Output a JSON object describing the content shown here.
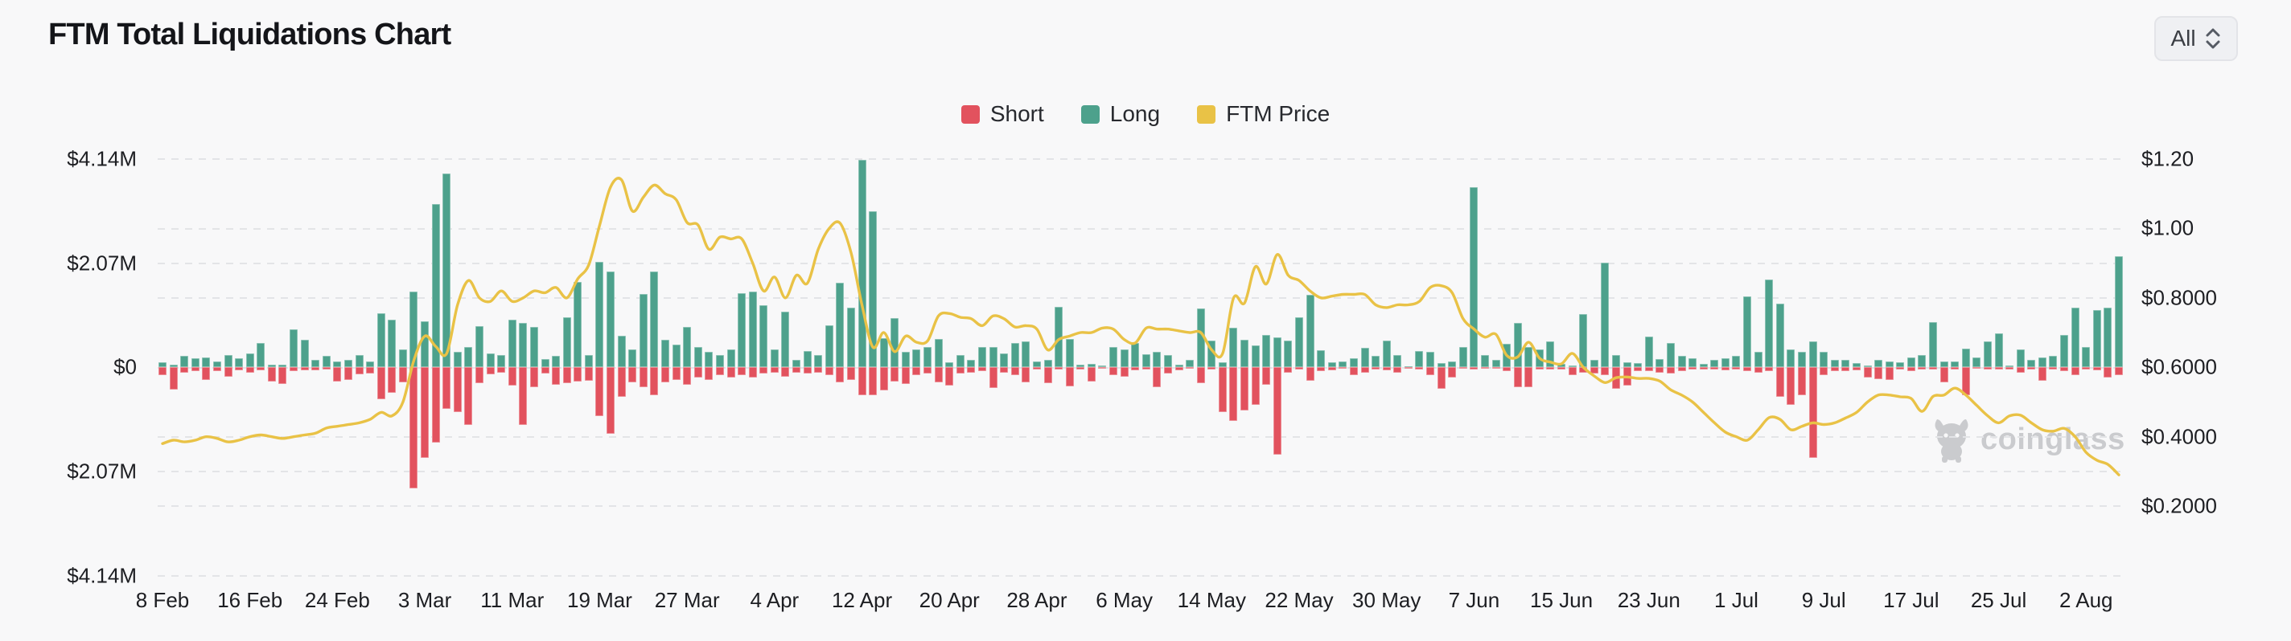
{
  "header": {
    "title": "FTM Total Liquidations Chart",
    "range_selector": {
      "value": "All"
    }
  },
  "legend": [
    {
      "label": "Short",
      "color": "#e2525e"
    },
    {
      "label": "Long",
      "color": "#4da18c"
    },
    {
      "label": "FTM Price",
      "color": "#e9c246"
    }
  ],
  "watermark": {
    "text": "coinglass"
  },
  "chart_data": {
    "type": "bar+line",
    "title": "FTM Total Liquidations Chart",
    "left_axis": {
      "labels": [
        "$4.14M",
        "$2.07M",
        "$0",
        "$2.07M",
        "$4.14M"
      ],
      "max_m": 4.14,
      "tick_step_m": 2.07,
      "unit": "USD millions"
    },
    "right_axis": {
      "labels": [
        "$1.20",
        "$1.00",
        "$0.8000",
        "$0.6000",
        "$0.4000",
        "$0.2000"
      ],
      "values": [
        1.2,
        1.0,
        0.8,
        0.6,
        0.4,
        0.2
      ],
      "min": 0,
      "max": 1.2,
      "unit": "USD"
    },
    "x_tick_labels": [
      "8 Feb",
      "16 Feb",
      "24 Feb",
      "3 Mar",
      "11 Mar",
      "19 Mar",
      "27 Mar",
      "4 Apr",
      "12 Apr",
      "20 Apr",
      "28 Apr",
      "6 May",
      "14 May",
      "22 May",
      "30 May",
      "7 Jun",
      "15 Jun",
      "23 Jun",
      "1 Jul",
      "9 Jul",
      "17 Jul",
      "25 Jul",
      "2 Aug"
    ],
    "x_tick_every": 8,
    "grid": "dashed-horizontal",
    "legend_position": "top-center",
    "dates": [
      "8 Feb",
      "9 Feb",
      "10 Feb",
      "11 Feb",
      "12 Feb",
      "13 Feb",
      "14 Feb",
      "15 Feb",
      "16 Feb",
      "17 Feb",
      "18 Feb",
      "19 Feb",
      "20 Feb",
      "21 Feb",
      "22 Feb",
      "23 Feb",
      "24 Feb",
      "25 Feb",
      "26 Feb",
      "27 Feb",
      "28 Feb",
      "29 Feb",
      "1 Mar",
      "2 Mar",
      "3 Mar",
      "4 Mar",
      "5 Mar",
      "6 Mar",
      "7 Mar",
      "8 Mar",
      "9 Mar",
      "10 Mar",
      "11 Mar",
      "12 Mar",
      "13 Mar",
      "14 Mar",
      "15 Mar",
      "16 Mar",
      "17 Mar",
      "18 Mar",
      "19 Mar",
      "20 Mar",
      "21 Mar",
      "22 Mar",
      "23 Mar",
      "24 Mar",
      "25 Mar",
      "26 Mar",
      "27 Mar",
      "28 Mar",
      "29 Mar",
      "30 Mar",
      "31 Mar",
      "1 Apr",
      "2 Apr",
      "3 Apr",
      "4 Apr",
      "5 Apr",
      "6 Apr",
      "7 Apr",
      "8 Apr",
      "9 Apr",
      "10 Apr",
      "11 Apr",
      "12 Apr",
      "13 Apr",
      "14 Apr",
      "15 Apr",
      "16 Apr",
      "17 Apr",
      "18 Apr",
      "19 Apr",
      "20 Apr",
      "21 Apr",
      "22 Apr",
      "23 Apr",
      "24 Apr",
      "25 Apr",
      "26 Apr",
      "27 Apr",
      "28 Apr",
      "29 Apr",
      "30 Apr",
      "1 May",
      "2 May",
      "3 May",
      "4 May",
      "5 May",
      "6 May",
      "7 May",
      "8 May",
      "9 May",
      "10 May",
      "11 May",
      "12 May",
      "13 May",
      "14 May",
      "15 May",
      "16 May",
      "17 May",
      "18 May",
      "19 May",
      "20 May",
      "21 May",
      "22 May",
      "23 May",
      "24 May",
      "25 May",
      "26 May",
      "27 May",
      "28 May",
      "29 May",
      "30 May",
      "31 May",
      "1 Jun",
      "2 Jun",
      "3 Jun",
      "4 Jun",
      "5 Jun",
      "6 Jun",
      "7 Jun",
      "8 Jun",
      "9 Jun",
      "10 Jun",
      "11 Jun",
      "12 Jun",
      "13 Jun",
      "14 Jun",
      "15 Jun",
      "16 Jun",
      "17 Jun",
      "18 Jun",
      "19 Jun",
      "20 Jun",
      "21 Jun",
      "22 Jun",
      "23 Jun",
      "24 Jun",
      "25 Jun",
      "26 Jun",
      "27 Jun",
      "28 Jun",
      "29 Jun",
      "30 Jun",
      "1 Jul",
      "2 Jul",
      "3 Jul",
      "4 Jul",
      "5 Jul",
      "6 Jul",
      "7 Jul",
      "8 Jul",
      "9 Jul",
      "10 Jul",
      "11 Jul",
      "12 Jul",
      "13 Jul",
      "14 Jul",
      "15 Jul",
      "16 Jul",
      "17 Jul",
      "18 Jul",
      "19 Jul",
      "20 Jul",
      "21 Jul",
      "22 Jul",
      "23 Jul",
      "24 Jul",
      "25 Jul",
      "26 Jul",
      "27 Jul",
      "28 Jul",
      "29 Jul",
      "30 Jul",
      "31 Jul",
      "1 Aug",
      "2 Aug",
      "3 Aug",
      "4 Aug",
      "5 Aug"
    ],
    "series": [
      {
        "name": "Long",
        "type": "bar",
        "direction": "up",
        "color": "#4da18c",
        "unit": "USD millions",
        "values": [
          0.1,
          0.05,
          0.23,
          0.18,
          0.2,
          0.12,
          0.25,
          0.18,
          0.28,
          0.48,
          0.05,
          0.05,
          0.75,
          0.55,
          0.15,
          0.22,
          0.12,
          0.14,
          0.25,
          0.12,
          1.07,
          0.95,
          0.35,
          1.5,
          0.92,
          3.24,
          3.85,
          0.3,
          0.4,
          0.82,
          0.28,
          0.24,
          0.95,
          0.89,
          0.8,
          0.16,
          0.22,
          0.99,
          1.7,
          0.25,
          2.1,
          1.9,
          0.62,
          0.35,
          1.45,
          1.9,
          0.55,
          0.45,
          0.8,
          0.4,
          0.3,
          0.25,
          0.35,
          1.47,
          1.5,
          1.24,
          0.35,
          1.1,
          0.14,
          0.32,
          0.25,
          0.83,
          1.68,
          1.19,
          4.13,
          3.1,
          0.58,
          0.98,
          0.3,
          0.36,
          0.4,
          0.56,
          0.1,
          0.25,
          0.15,
          0.4,
          0.4,
          0.28,
          0.48,
          0.52,
          0.12,
          0.15,
          1.2,
          0.57,
          0.05,
          0.06,
          0.03,
          0.4,
          0.35,
          0.48,
          0.26,
          0.3,
          0.25,
          0.05,
          0.15,
          1.17,
          0.53,
          0.1,
          0.79,
          0.55,
          0.43,
          0.64,
          0.6,
          0.53,
          1.0,
          1.44,
          0.34,
          0.1,
          0.12,
          0.18,
          0.38,
          0.22,
          0.53,
          0.25,
          0.02,
          0.33,
          0.3,
          0.08,
          0.12,
          0.41,
          3.58,
          0.25,
          0.15,
          0.46,
          0.89,
          0.4,
          0.35,
          0.51,
          0.06,
          0.04,
          1.05,
          0.15,
          2.08,
          0.25,
          0.1,
          0.08,
          0.61,
          0.17,
          0.48,
          0.22,
          0.18,
          0.06,
          0.15,
          0.18,
          0.22,
          1.41,
          0.3,
          1.74,
          1.26,
          0.35,
          0.3,
          0.52,
          0.3,
          0.15,
          0.15,
          0.08,
          0.03,
          0.15,
          0.12,
          0.1,
          0.19,
          0.24,
          0.9,
          0.11,
          0.12,
          0.37,
          0.2,
          0.51,
          0.68,
          0.04,
          0.35,
          0.15,
          0.2,
          0.22,
          0.64,
          1.18,
          0.41,
          1.14,
          1.19,
          2.21
        ]
      },
      {
        "name": "Short",
        "type": "bar",
        "direction": "down",
        "color": "#e2525e",
        "unit": "USD millions",
        "values": [
          0.15,
          0.45,
          0.1,
          0.08,
          0.25,
          0.08,
          0.18,
          0.06,
          0.1,
          0.06,
          0.28,
          0.33,
          0.08,
          0.06,
          0.06,
          0.05,
          0.28,
          0.25,
          0.14,
          0.12,
          0.64,
          0.5,
          0.3,
          2.4,
          1.8,
          1.49,
          0.83,
          0.89,
          1.14,
          0.31,
          0.14,
          0.1,
          0.37,
          1.15,
          0.4,
          0.12,
          0.35,
          0.32,
          0.29,
          0.26,
          0.97,
          1.32,
          0.58,
          0.3,
          0.4,
          0.55,
          0.3,
          0.25,
          0.35,
          0.2,
          0.25,
          0.15,
          0.2,
          0.15,
          0.2,
          0.12,
          0.1,
          0.18,
          0.1,
          0.12,
          0.1,
          0.15,
          0.3,
          0.25,
          0.55,
          0.55,
          0.46,
          0.28,
          0.33,
          0.15,
          0.12,
          0.3,
          0.36,
          0.12,
          0.1,
          0.08,
          0.41,
          0.1,
          0.15,
          0.3,
          0.04,
          0.31,
          0.05,
          0.38,
          0.04,
          0.28,
          0.03,
          0.15,
          0.18,
          0.06,
          0.05,
          0.4,
          0.12,
          0.06,
          0.03,
          0.31,
          0.05,
          0.89,
          1.06,
          0.86,
          0.74,
          0.35,
          1.73,
          0.1,
          0.05,
          0.27,
          0.08,
          0.06,
          0.02,
          0.15,
          0.1,
          0.05,
          0.06,
          0.1,
          0.02,
          0.05,
          0.15,
          0.42,
          0.2,
          0.03,
          0.05,
          0.03,
          0.02,
          0.08,
          0.4,
          0.39,
          0.05,
          0.04,
          0.04,
          0.15,
          0.1,
          0.12,
          0.15,
          0.43,
          0.37,
          0.08,
          0.07,
          0.1,
          0.12,
          0.08,
          0.05,
          0.04,
          0.05,
          0.06,
          0.05,
          0.08,
          0.1,
          0.08,
          0.58,
          0.75,
          0.56,
          1.8,
          0.15,
          0.08,
          0.08,
          0.06,
          0.2,
          0.24,
          0.25,
          0.05,
          0.08,
          0.05,
          0.04,
          0.3,
          0.04,
          0.55,
          0.03,
          0.05,
          0.04,
          0.04,
          0.1,
          0.05,
          0.27,
          0.05,
          0.08,
          0.16,
          0.05,
          0.06,
          0.2,
          0.15
        ]
      },
      {
        "name": "FTM Price",
        "type": "line",
        "axis": "right",
        "color": "#e9c246",
        "unit": "USD",
        "values": [
          0.38,
          0.39,
          0.385,
          0.39,
          0.4,
          0.395,
          0.385,
          0.39,
          0.4,
          0.405,
          0.4,
          0.395,
          0.4,
          0.405,
          0.41,
          0.425,
          0.43,
          0.435,
          0.44,
          0.45,
          0.47,
          0.46,
          0.5,
          0.62,
          0.69,
          0.66,
          0.64,
          0.78,
          0.85,
          0.8,
          0.79,
          0.82,
          0.79,
          0.8,
          0.82,
          0.815,
          0.83,
          0.8,
          0.855,
          0.895,
          1.01,
          1.12,
          1.14,
          1.05,
          1.09,
          1.125,
          1.1,
          1.083,
          1.017,
          1.01,
          0.94,
          0.975,
          0.97,
          0.97,
          0.9,
          0.82,
          0.86,
          0.8,
          0.865,
          0.842,
          0.94,
          1.0,
          1.015,
          0.93,
          0.78,
          0.658,
          0.7,
          0.645,
          0.69,
          0.672,
          0.676,
          0.748,
          0.755,
          0.744,
          0.74,
          0.72,
          0.748,
          0.74,
          0.716,
          0.72,
          0.71,
          0.65,
          0.68,
          0.69,
          0.7,
          0.7,
          0.713,
          0.71,
          0.68,
          0.67,
          0.713,
          0.71,
          0.71,
          0.705,
          0.7,
          0.7,
          0.65,
          0.64,
          0.8,
          0.785,
          0.89,
          0.84,
          0.925,
          0.865,
          0.85,
          0.82,
          0.8,
          0.805,
          0.81,
          0.81,
          0.81,
          0.78,
          0.772,
          0.78,
          0.78,
          0.79,
          0.83,
          0.835,
          0.815,
          0.74,
          0.71,
          0.687,
          0.695,
          0.634,
          0.63,
          0.672,
          0.626,
          0.615,
          0.61,
          0.64,
          0.6,
          0.575,
          0.556,
          0.57,
          0.572,
          0.568,
          0.568,
          0.56,
          0.535,
          0.52,
          0.5,
          0.47,
          0.44,
          0.413,
          0.4,
          0.39,
          0.42,
          0.455,
          0.45,
          0.42,
          0.43,
          0.44,
          0.435,
          0.44,
          0.454,
          0.47,
          0.5,
          0.52,
          0.52,
          0.515,
          0.51,
          0.473,
          0.516,
          0.52,
          0.54,
          0.52,
          0.49,
          0.46,
          0.44,
          0.46,
          0.462,
          0.44,
          0.42,
          0.416,
          0.424,
          0.4,
          0.355,
          0.332,
          0.32,
          0.29
        ]
      }
    ]
  }
}
